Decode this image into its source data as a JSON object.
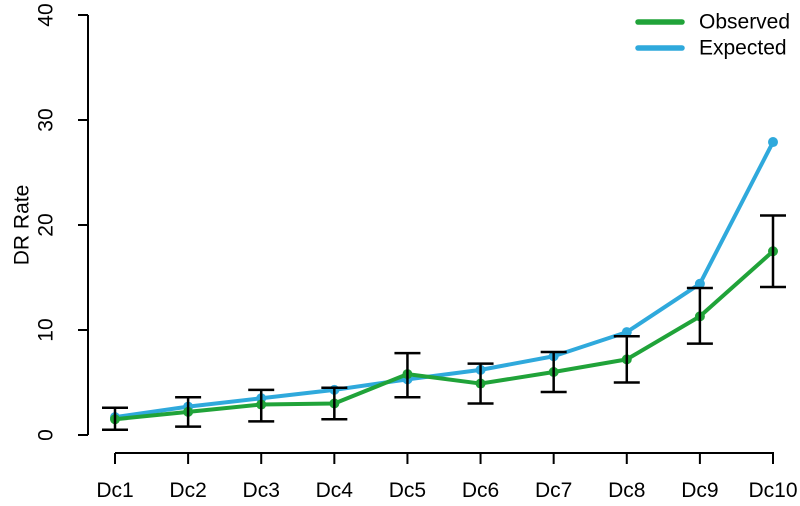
{
  "chart_data": {
    "type": "line",
    "title": "",
    "xlabel": "",
    "ylabel": "DR Rate",
    "categories": [
      "Dc1",
      "Dc2",
      "Dc3",
      "Dc4",
      "Dc5",
      "Dc6",
      "Dc7",
      "Dc8",
      "Dc9",
      "Dc10"
    ],
    "series": [
      {
        "name": "Observed",
        "color": "#20a339",
        "values": [
          1.5,
          2.2,
          2.9,
          3.0,
          5.8,
          4.9,
          6.0,
          7.2,
          11.3,
          17.5
        ],
        "error_low": [
          0.5,
          0.8,
          1.3,
          1.5,
          3.6,
          3.0,
          4.1,
          5.0,
          8.7,
          14.1
        ],
        "error_high": [
          2.6,
          3.6,
          4.3,
          4.5,
          7.8,
          6.8,
          7.9,
          9.4,
          14.0,
          20.9
        ]
      },
      {
        "name": "Expected",
        "color": "#2fa9dc",
        "values": [
          1.7,
          2.7,
          3.5,
          4.3,
          5.3,
          6.2,
          7.5,
          9.8,
          14.4,
          27.9
        ]
      }
    ],
    "ylim": [
      0,
      40
    ],
    "yticks": [
      0,
      10,
      20,
      30,
      40
    ],
    "grid": false,
    "legend_position": "top-right",
    "legend_entries": [
      "Observed",
      "Expected"
    ],
    "error_bar_color": "#000000",
    "axis_color": "#000000"
  }
}
